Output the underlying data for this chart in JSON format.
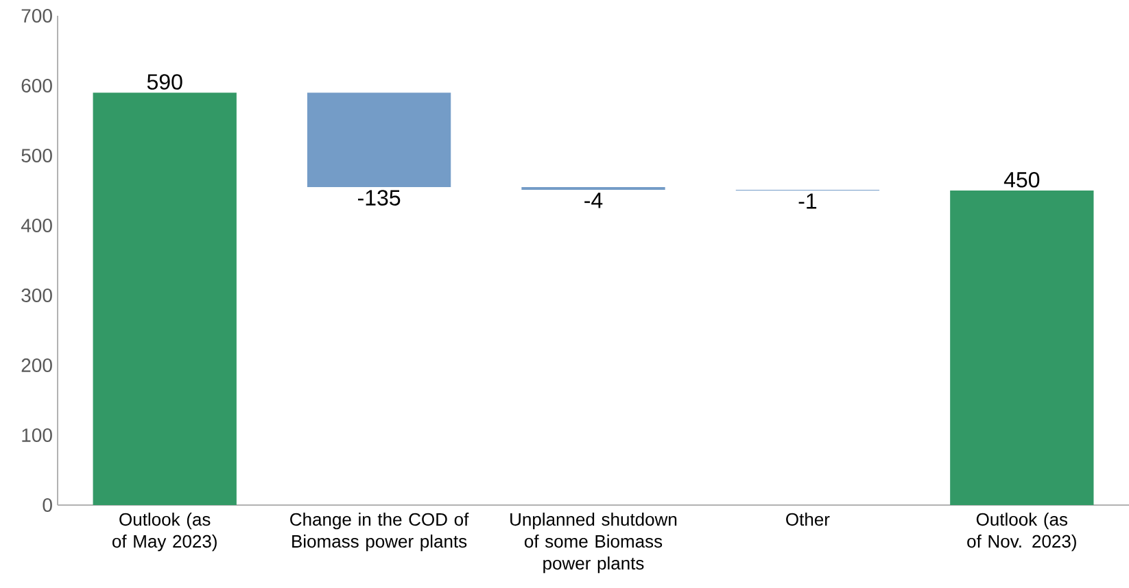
{
  "chart_data": {
    "type": "bar",
    "categories": [
      "Outlook (as of May 2023)",
      "Change in the COD of Biomass power plants",
      "Unplanned shutdown of some Biomass power plants",
      "Other",
      "Outlook (as of Nov. 2023)"
    ],
    "values": [
      590,
      -135,
      -4,
      -1,
      450
    ],
    "base": [
      0,
      590,
      455,
      451,
      0
    ],
    "colors": [
      "#339966",
      "#749cc7",
      "#749cc7",
      "#749cc7",
      "#339966"
    ],
    "ylim": [
      0,
      700
    ],
    "yticks": [
      0,
      100,
      200,
      300,
      400,
      500,
      600,
      700
    ],
    "data_labels": true,
    "grid": false
  }
}
